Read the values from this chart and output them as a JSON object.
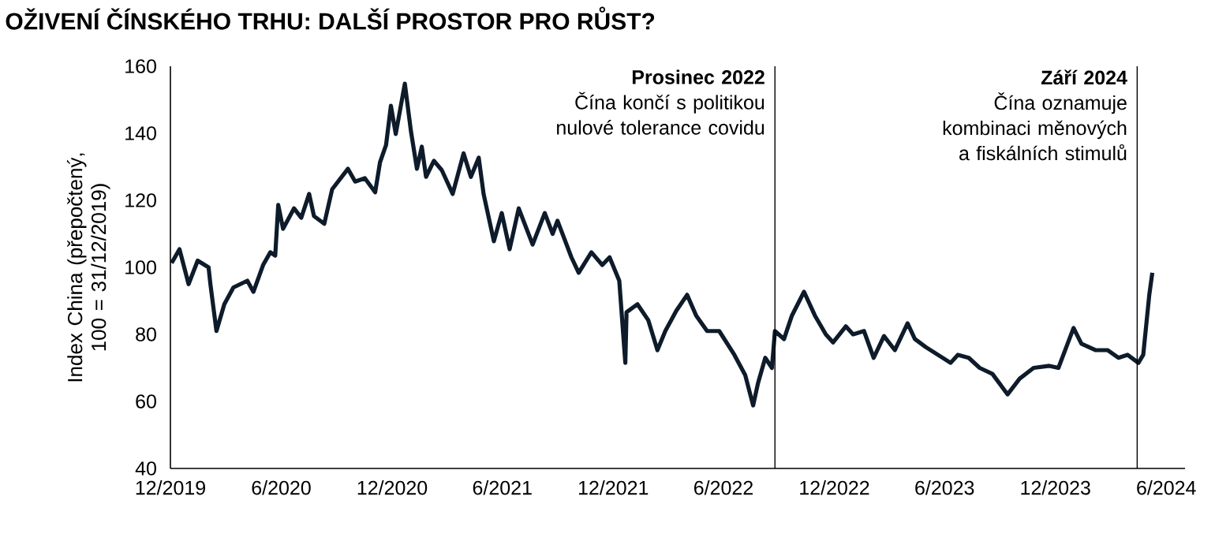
{
  "chart_data": {
    "type": "line",
    "title": "OŽIVENÍ ČÍNSKÉHO TRHU: DALŠÍ PROSTOR PRO RŮST?",
    "ylabel": "Index China (přepočtený, 100 = 31/12/2019)",
    "x": [
      "2019-12-03",
      "2019-12-16",
      "2019-12-31",
      "2020-01-15",
      "2020-02-02",
      "2020-02-05",
      "2020-02-15",
      "2020-02-28",
      "2020-03-14",
      "2020-04-06",
      "2020-04-16",
      "2020-05-02",
      "2020-05-14",
      "2020-05-22",
      "2020-05-27",
      "2020-06-04",
      "2020-06-22",
      "2020-07-04",
      "2020-07-17",
      "2020-07-25",
      "2020-08-11",
      "2020-08-24",
      "2020-09-19",
      "2020-10-01",
      "2020-10-17",
      "2020-11-03",
      "2020-11-11",
      "2020-11-21",
      "2020-11-29",
      "2020-12-07",
      "2020-12-22",
      "2021-01-01",
      "2021-01-11",
      "2021-01-19",
      "2021-01-26",
      "2021-02-08",
      "2021-02-21",
      "2021-03-11",
      "2021-03-29",
      "2021-04-10",
      "2021-04-23",
      "2021-05-01",
      "2021-05-18",
      "2021-05-31",
      "2021-06-13",
      "2021-06-28",
      "2021-07-21",
      "2021-08-10",
      "2021-08-23",
      "2021-08-31",
      "2021-09-23",
      "2021-10-05",
      "2021-10-26",
      "2021-11-13",
      "2021-11-25",
      "2021-12-11",
      "2021-12-21",
      "2021-12-23",
      "2022-01-10",
      "2022-01-28",
      "2022-02-12",
      "2022-02-25",
      "2022-03-15",
      "2022-04-02",
      "2022-04-17",
      "2022-05-05",
      "2022-05-25",
      "2022-06-19",
      "2022-07-07",
      "2022-07-20",
      "2022-07-28",
      "2022-08-09",
      "2022-08-20",
      "2022-08-25",
      "2022-09-09",
      "2022-09-22",
      "2022-10-12",
      "2022-10-30",
      "2022-11-17",
      "2022-11-29",
      "2022-12-20",
      "2023-01-01",
      "2023-01-19",
      "2023-02-04",
      "2023-02-21",
      "2023-03-11",
      "2023-04-01",
      "2023-04-13",
      "2023-05-01",
      "2023-05-21",
      "2023-06-11",
      "2023-06-23",
      "2023-07-11",
      "2023-07-29",
      "2023-08-19",
      "2023-09-13",
      "2023-10-03",
      "2023-10-26",
      "2023-11-21",
      "2023-12-06",
      "2023-12-19",
      "2023-12-31",
      "2024-01-13",
      "2024-02-05",
      "2024-02-25",
      "2024-03-14",
      "2024-03-29",
      "2024-04-16",
      "2024-04-24",
      "2024-05-04",
      "2024-05-09"
    ],
    "series": [
      {
        "color": "#0d1b2a",
        "values": [
          101.3,
          105.4,
          95,
          102,
          100,
          95,
          81,
          89,
          94,
          96,
          92.7,
          100.7,
          104.5,
          103.5,
          118.6,
          111.5,
          117.6,
          114.8,
          121.9,
          115.3,
          113,
          123.3,
          129.4,
          125.6,
          126.6,
          122.4,
          131.3,
          136.5,
          148.2,
          139.8,
          154.8,
          140.7,
          129.4,
          136,
          127,
          131.8,
          129,
          121.9,
          134,
          127,
          132.7,
          121.9,
          107.8,
          116.2,
          105.4,
          117.6,
          106.8,
          116.2,
          110,
          113.9,
          103,
          98.4,
          104.5,
          100.7,
          103,
          96,
          71.5,
          86.6,
          89,
          84.2,
          75.3,
          81,
          87,
          91.8,
          85.6,
          81,
          81,
          73.9,
          67.8,
          58.8,
          65.4,
          73,
          70,
          81,
          78.6,
          85.6,
          92.7,
          85.6,
          80,
          77.6,
          82.4,
          80,
          81,
          73,
          79.5,
          75.3,
          83.3,
          78.6,
          76.2,
          73.9,
          71.5,
          73.9,
          73,
          70,
          68.2,
          62.1,
          66.8,
          70,
          70.6,
          70,
          76.2,
          81.9,
          77.2,
          75.3,
          75.3,
          73,
          73.9,
          71.5,
          73.9,
          91.8,
          98.4
        ]
      }
    ],
    "xlim": [
      "2019-12-01",
      "2024-07-02"
    ],
    "ylim": [
      40,
      160
    ],
    "yticks": [
      40,
      60,
      80,
      100,
      120,
      140,
      160
    ],
    "xticks": [
      {
        "value": "2019-12-01",
        "label": "12/2019"
      },
      {
        "value": "2020-06-01",
        "label": "6/2020"
      },
      {
        "value": "2020-12-01",
        "label": "12/2020"
      },
      {
        "value": "2021-06-01",
        "label": "6/2021"
      },
      {
        "value": "2021-12-01",
        "label": "12/2021"
      },
      {
        "value": "2022-06-01",
        "label": "6/2022"
      },
      {
        "value": "2022-12-01",
        "label": "12/2022"
      },
      {
        "value": "2023-06-01",
        "label": "6/2023"
      },
      {
        "value": "2023-12-01",
        "label": "12/2023"
      },
      {
        "value": "2024-06-01",
        "label": "6/2024"
      }
    ],
    "ref_lines": [
      {
        "axis": "x",
        "value": "2022-08-25",
        "label": "Prosinec 2022",
        "color": "#000000"
      },
      {
        "axis": "x",
        "value": "2024-04-14",
        "label": "Září 2024",
        "color": "#000000"
      }
    ],
    "annotations": [
      "Čína končí s politikou nulové tolerance covidu",
      "Čína oznamuje kombinaci měnových a fiskálních stimulů"
    ],
    "grid": false,
    "marker": "none",
    "line_style": "solid"
  }
}
